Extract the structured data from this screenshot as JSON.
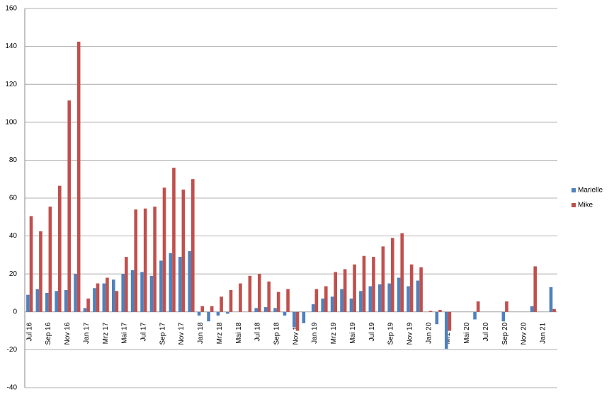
{
  "chart_data": {
    "type": "bar",
    "categories": [
      "Jul 16",
      null,
      "Sep 16",
      null,
      "Nov 16",
      null,
      "Jan 17",
      null,
      "Mrz 17",
      null,
      "Mai 17",
      null,
      "Jul 17",
      null,
      "Sep 17",
      null,
      "Nov 17",
      null,
      "Jan 18",
      null,
      "Mrz 18",
      null,
      "Mai 18",
      null,
      "Jul 18",
      null,
      "Sep 18",
      null,
      "Nov 18",
      null,
      "Jan 19",
      null,
      "Mrz 19",
      null,
      "Mai 19",
      null,
      "Jul 19",
      null,
      "Sep 19",
      null,
      "Nov 19",
      null,
      "Jan 20",
      null,
      "Mrz 20",
      null,
      "Mai 20",
      null,
      "Jul 20",
      null,
      "Sep 20",
      null,
      "Nov 20",
      null,
      "Jan 21",
      null
    ],
    "series": [
      {
        "name": "Marielle",
        "color": "#4f81bd",
        "values": [
          9,
          12,
          10,
          11,
          11.5,
          20,
          2,
          12.5,
          15,
          17,
          20,
          22,
          21,
          19,
          27,
          31,
          29,
          32,
          -2,
          -5,
          -2,
          -1,
          0,
          0,
          2,
          2.5,
          2,
          -2,
          -8,
          -6,
          4,
          7,
          8,
          12,
          7,
          11,
          13.5,
          14.5,
          15,
          18,
          13.5,
          16.5,
          0,
          -6.5,
          -19.5,
          0,
          0,
          -4,
          0,
          0,
          -5,
          0,
          0,
          3,
          0,
          13
        ]
      },
      {
        "name": "Mike",
        "color": "#c0504d",
        "values": [
          50.5,
          42.5,
          55.5,
          66.5,
          111.5,
          142.5,
          7,
          15,
          18,
          11,
          29,
          54,
          54.5,
          55.5,
          65.5,
          76,
          64.5,
          70,
          3,
          3,
          8,
          11.5,
          15,
          19,
          20,
          16,
          10.5,
          12,
          -10,
          0,
          12,
          13.5,
          21,
          22.5,
          25,
          29.5,
          29,
          34.5,
          39,
          41.5,
          25,
          23.5,
          0.5,
          1,
          -10,
          0,
          0,
          5.5,
          0,
          0,
          5.5,
          0,
          0,
          24,
          0,
          1.5
        ]
      }
    ],
    "ylim": [
      -40,
      160
    ],
    "yticks": [
      -40,
      -20,
      0,
      20,
      40,
      60,
      80,
      100,
      120,
      140,
      160
    ],
    "grid": true,
    "legend": "right"
  }
}
